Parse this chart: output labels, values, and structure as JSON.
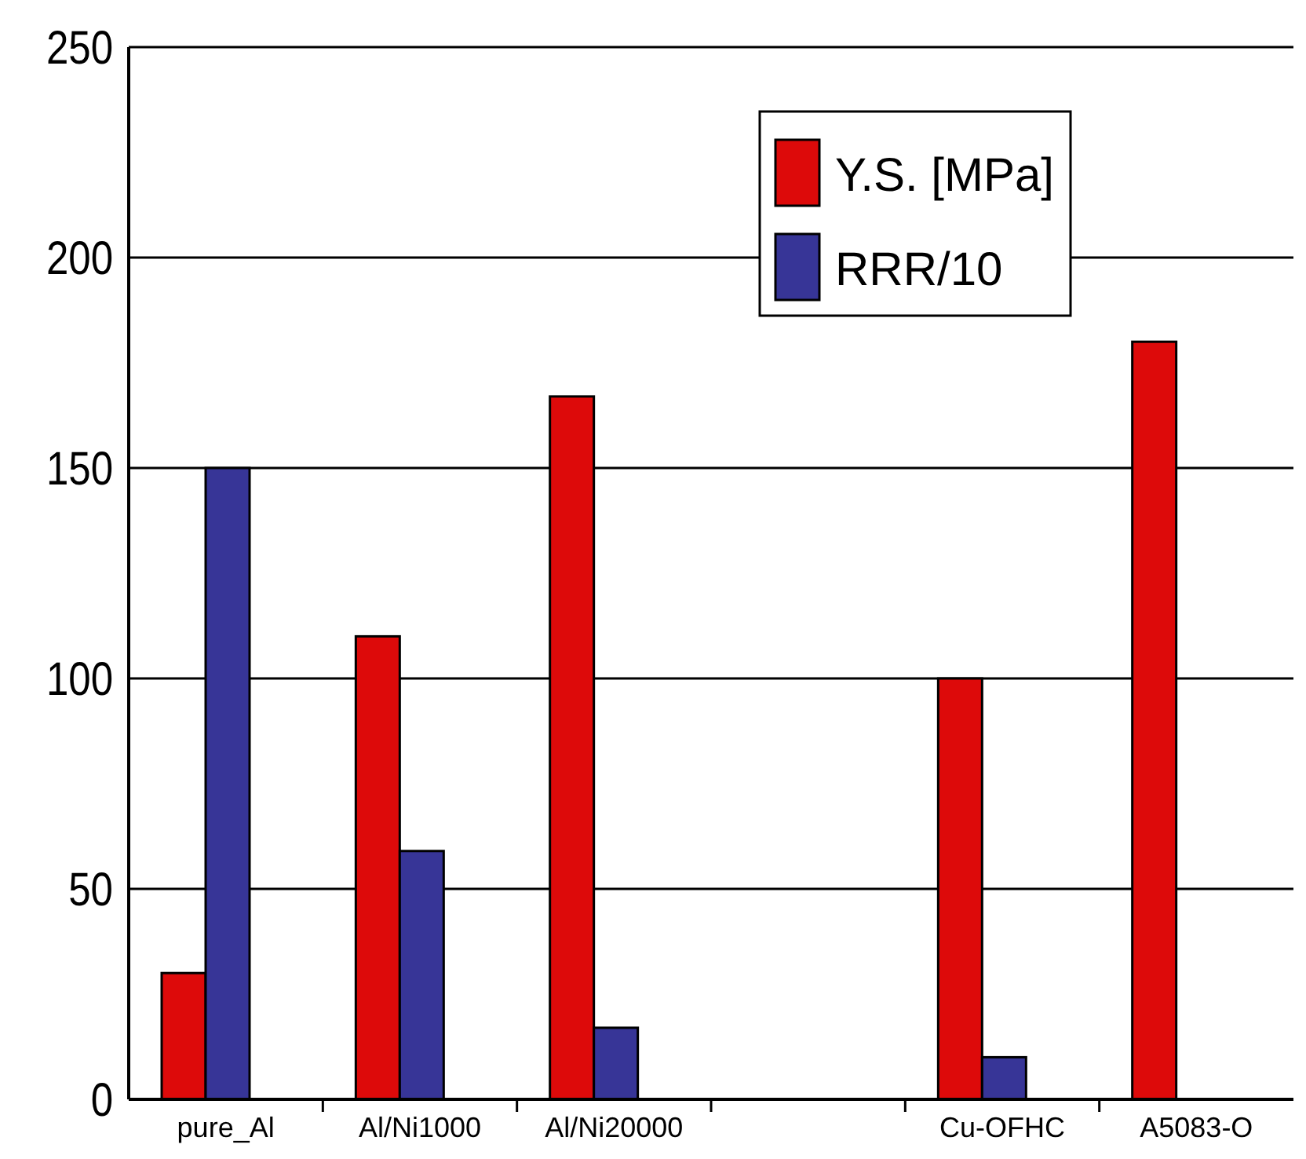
{
  "chart_data": {
    "type": "bar",
    "categories": [
      "pure_Al",
      "Al/Ni1000",
      "Al/Ni20000",
      null,
      "Cu-OFHC",
      "A5083-O"
    ],
    "series": [
      {
        "name": "Y.S. [MPa]",
        "color": "#dd0a0a",
        "values": [
          30,
          110,
          167,
          null,
          100,
          180
        ]
      },
      {
        "name": "RRR/10",
        "color": "#373597",
        "values": [
          150,
          59,
          17,
          null,
          10,
          null
        ]
      }
    ],
    "ylim": [
      0,
      250
    ],
    "yticks": [
      0,
      50,
      100,
      150,
      200,
      250
    ],
    "grid": "y",
    "legend": "top right"
  }
}
